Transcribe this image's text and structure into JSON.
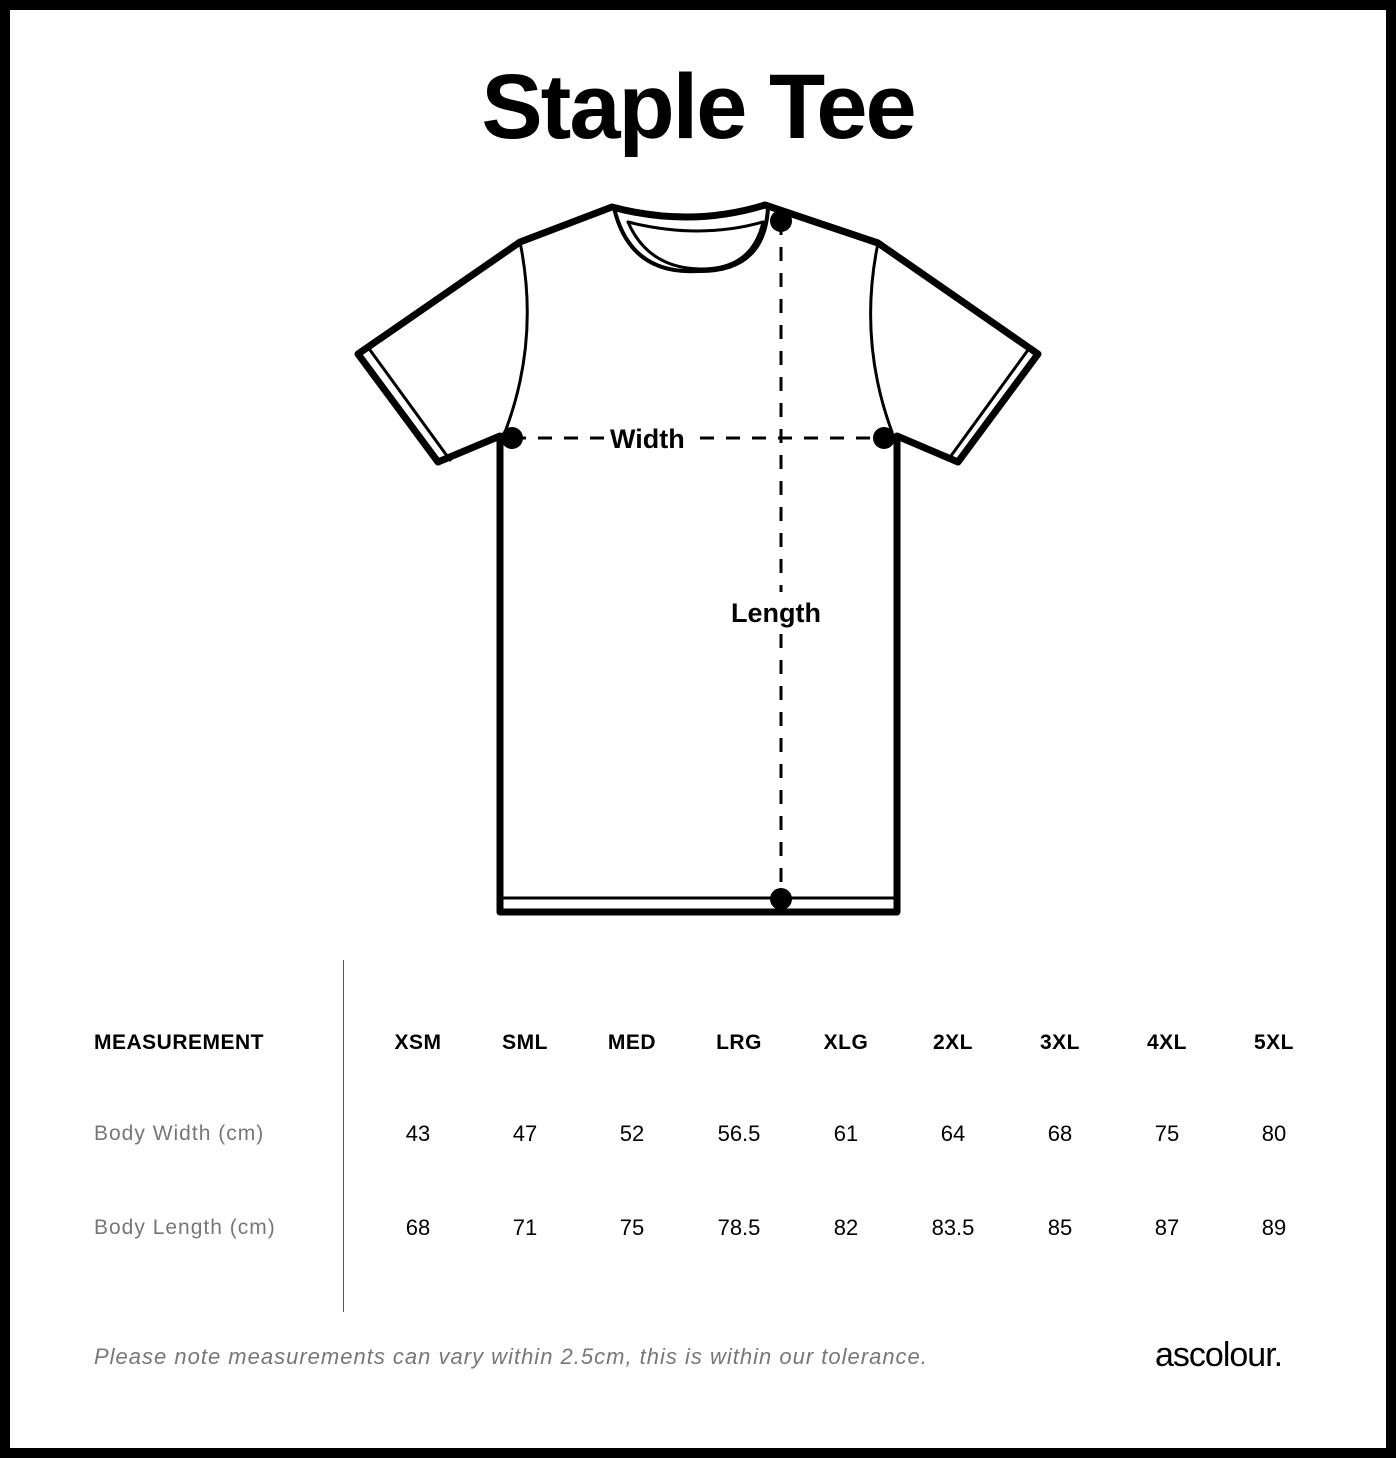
{
  "title": "Staple Tee",
  "diagram": {
    "width_label": "Width",
    "length_label": "Length"
  },
  "table": {
    "header_label": "MEASUREMENT",
    "sizes": [
      "XSM",
      "SML",
      "MED",
      "LRG",
      "XLG",
      "2XL",
      "3XL",
      "4XL",
      "5XL"
    ],
    "rows": [
      {
        "label": "Body Width (cm)",
        "values": [
          "43",
          "47",
          "52",
          "56.5",
          "61",
          "64",
          "68",
          "75",
          "80"
        ]
      },
      {
        "label": "Body Length (cm)",
        "values": [
          "68",
          "71",
          "75",
          "78.5",
          "82",
          "83.5",
          "85",
          "87",
          "89"
        ]
      }
    ]
  },
  "footnote": "Please note measurements can vary within 2.5cm, this is within our tolerance.",
  "logo": "ascolour."
}
